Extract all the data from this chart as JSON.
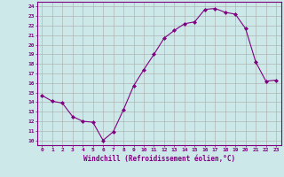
{
  "x": [
    0,
    1,
    2,
    3,
    4,
    5,
    6,
    7,
    8,
    9,
    10,
    11,
    12,
    13,
    14,
    15,
    16,
    17,
    18,
    19,
    20,
    21,
    22,
    23
  ],
  "y": [
    14.7,
    14.1,
    13.9,
    12.5,
    12.0,
    11.9,
    10.0,
    10.9,
    13.2,
    15.7,
    17.4,
    19.0,
    20.7,
    21.5,
    22.2,
    22.4,
    23.7,
    23.8,
    23.4,
    23.2,
    21.7,
    18.2,
    16.2,
    16.3
  ],
  "line_color": "#800080",
  "marker": "D",
  "marker_size": 2,
  "xlim": [
    -0.5,
    23.5
  ],
  "ylim": [
    9.5,
    24.5
  ],
  "yticks": [
    10,
    11,
    12,
    13,
    14,
    15,
    16,
    17,
    18,
    19,
    20,
    21,
    22,
    23,
    24
  ],
  "xticks": [
    0,
    1,
    2,
    3,
    4,
    5,
    6,
    7,
    8,
    9,
    10,
    11,
    12,
    13,
    14,
    15,
    16,
    17,
    18,
    19,
    20,
    21,
    22,
    23
  ],
  "xlabel": "Windchill (Refroidissement éolien,°C)",
  "bg_color": "#cce8e8",
  "grid_color": "#aaaaaa",
  "spine_color": "#800080"
}
